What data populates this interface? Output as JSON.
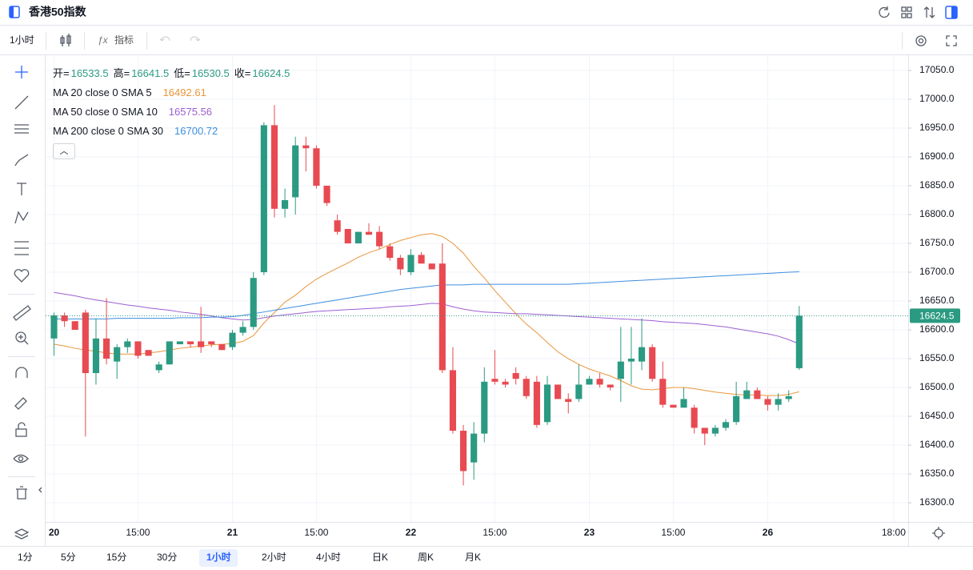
{
  "ui": {
    "title": "香港50指数",
    "interval": "1小时",
    "indicators": "指标",
    "ohlc_labels": [
      "开=",
      "高=",
      "低=",
      "收="
    ],
    "timeframes": [
      "1分",
      "5分",
      "15分",
      "30分",
      "1小时",
      "2小时",
      "4小时",
      "日K",
      "周K",
      "月K"
    ],
    "active_timeframe": 4
  },
  "chart_data": {
    "type": "candlestick",
    "up_color": "#2b9a82",
    "down_color": "#e84a51",
    "grid": true,
    "xlim": [
      -0.8,
      81
    ],
    "xticks": [
      {
        "value": 0,
        "label": "20"
      },
      {
        "value": 8,
        "label": "15:00"
      },
      {
        "value": 17,
        "label": "21"
      },
      {
        "value": 25,
        "label": "15:00"
      },
      {
        "value": 34,
        "label": "22"
      },
      {
        "value": 42,
        "label": "15:00"
      },
      {
        "value": 51,
        "label": "23"
      },
      {
        "value": 59,
        "label": "15:00"
      },
      {
        "value": 68,
        "label": "26"
      },
      {
        "value": 80,
        "label": "18:00"
      }
    ],
    "ylim": [
      16266.7,
      17075
    ],
    "yticks": [
      {
        "value": 16300,
        "label": "16300.0"
      },
      {
        "value": 16350,
        "label": "16350.0"
      },
      {
        "value": 16400,
        "label": "16400.0"
      },
      {
        "value": 16450,
        "label": "16450.0"
      },
      {
        "value": 16500,
        "label": "16500.0"
      },
      {
        "value": 16550,
        "label": "16550.0"
      },
      {
        "value": 16600,
        "label": "16600.0"
      },
      {
        "value": 16650,
        "label": "16650.0"
      },
      {
        "value": 16700,
        "label": "16700.0"
      },
      {
        "value": 16750,
        "label": "16750.0"
      },
      {
        "value": 16800,
        "label": "16800.0"
      },
      {
        "value": 16850,
        "label": "16850.0"
      },
      {
        "value": 16900,
        "label": "16900.0"
      },
      {
        "value": 16950,
        "label": "16950.0"
      },
      {
        "value": 17000,
        "label": "17000.0"
      },
      {
        "value": 17050,
        "label": "17050.0"
      }
    ],
    "open": [
      16585,
      16625,
      16615,
      16630,
      16525,
      16585,
      16545,
      16570,
      16580,
      16565,
      16530,
      16540,
      16575,
      16580,
      16580,
      16580,
      16575,
      16570,
      16595,
      16605,
      16700,
      16955,
      16810,
      16830,
      16920,
      16915,
      16850,
      16790,
      16775,
      16750,
      16770,
      16770,
      16745,
      16725,
      16700,
      16730,
      16715,
      16715,
      16530,
      16425,
      16370,
      16420,
      16515,
      16510,
      16525,
      16515,
      16510,
      16440,
      16505,
      16480,
      16480,
      16505,
      16515,
      16505,
      16515,
      16545,
      16545,
      16570,
      16515,
      16470,
      16465,
      16465,
      16430,
      16420,
      16430,
      16440,
      16480,
      16495,
      16480,
      16470,
      16480,
      16533.5
    ],
    "high": [
      16630,
      16630,
      16615,
      16635,
      16620,
      16655,
      16575,
      16585,
      16580,
      16565,
      16545,
      16580,
      16580,
      16580,
      16640,
      16580,
      16575,
      16600,
      16615,
      16700,
      16960,
      16990,
      16845,
      16935,
      16935,
      16920,
      16850,
      16800,
      16775,
      16770,
      16785,
      16780,
      16750,
      16730,
      16740,
      16735,
      16715,
      16750,
      16570,
      16435,
      16440,
      16535,
      16565,
      16515,
      16535,
      16520,
      16520,
      16520,
      16505,
      16490,
      16540,
      16520,
      16525,
      16505,
      16605,
      16605,
      16620,
      16575,
      16545,
      16470,
      16500,
      16470,
      16430,
      16435,
      16445,
      16510,
      16510,
      16500,
      16485,
      16490,
      16495,
      16641.5
    ],
    "low": [
      16555,
      16605,
      16600,
      16415,
      16505,
      16540,
      16515,
      16560,
      16550,
      16555,
      16525,
      16540,
      16575,
      16570,
      16560,
      16570,
      16565,
      16565,
      16590,
      16600,
      16695,
      16795,
      16795,
      16800,
      16875,
      16845,
      16815,
      16765,
      16750,
      16750,
      16765,
      16740,
      16720,
      16695,
      16695,
      16715,
      16705,
      16525,
      16420,
      16330,
      16340,
      16405,
      16505,
      16500,
      16505,
      16480,
      16430,
      16435,
      16480,
      16455,
      16475,
      16505,
      16500,
      16495,
      16475,
      16505,
      16530,
      16510,
      16465,
      16465,
      16465,
      16420,
      16400,
      16415,
      16425,
      16435,
      16480,
      16480,
      16460,
      16460,
      16475,
      16530.5
    ],
    "close": [
      16625,
      16615,
      16600,
      16525,
      16585,
      16550,
      16570,
      16580,
      16555,
      16555,
      16540,
      16580,
      16580,
      16575,
      16570,
      16575,
      16565,
      16595,
      16605,
      16690,
      16955,
      16810,
      16825,
      16920,
      16915,
      16850,
      16820,
      16770,
      16750,
      16770,
      16765,
      16745,
      16725,
      16705,
      16730,
      16715,
      16705,
      16530,
      16425,
      16355,
      16420,
      16510,
      16510,
      16505,
      16515,
      16485,
      16435,
      16505,
      16480,
      16475,
      16505,
      16515,
      16505,
      16500,
      16545,
      16550,
      16570,
      16515,
      16470,
      16465,
      16480,
      16430,
      16420,
      16430,
      16440,
      16485,
      16495,
      16480,
      16470,
      16480,
      16485,
      16624.5
    ],
    "series": [
      {
        "name": "MA 20 close 0 SMA 5",
        "color": "#e8963a",
        "values": [
          16575,
          16572,
          16568,
          16565,
          16563,
          16560,
          16558,
          16558,
          16558,
          16560,
          16562,
          16565,
          16568,
          16570,
          16572,
          16574,
          16575,
          16576,
          16580,
          16590,
          16612,
          16630,
          16648,
          16660,
          16675,
          16688,
          16698,
          16707,
          16716,
          16726,
          16734,
          16740,
          16748,
          16755,
          16760,
          16765,
          16767,
          16762,
          16750,
          16733,
          16710,
          16690,
          16668,
          16648,
          16628,
          16610,
          16595,
          16578,
          16562,
          16550,
          16540,
          16532,
          16526,
          16520,
          16512,
          16503,
          16497,
          16496,
          16498,
          16500,
          16500,
          16498,
          16495,
          16492,
          16490,
          16488,
          16487,
          16487,
          16486,
          16486,
          16488,
          16492.61
        ]
      },
      {
        "name": "MA 50 close 0 SMA 10",
        "color": "#9c5fd0",
        "values": [
          16665,
          16662,
          16659,
          16655,
          16652,
          16649,
          16646,
          16643,
          16641,
          16638,
          16636,
          16634,
          16631,
          16629,
          16627,
          16624,
          16621,
          16619,
          16617,
          16618,
          16621,
          16624,
          16626,
          16628,
          16630,
          16632,
          16633,
          16634,
          16635,
          16636,
          16637,
          16638,
          16640,
          16641,
          16642,
          16644,
          16646,
          16645,
          16640,
          16636,
          16633,
          16631,
          16630,
          16629,
          16628,
          16628,
          16627,
          16626,
          16625,
          16624,
          16623,
          16622,
          16621,
          16620,
          16619,
          16618,
          16617,
          16616,
          16614,
          16613,
          16612,
          16611,
          16609,
          16607,
          16605,
          16602,
          16599,
          16596,
          16593,
          16589,
          16583,
          16575.56
        ]
      },
      {
        "name": "MA 200 close 0 SMA 30",
        "color": "#3d8ee0",
        "values": [
          16619,
          16619,
          16619,
          16619,
          16619,
          16619,
          16620,
          16620,
          16620,
          16620,
          16620,
          16620,
          16621,
          16621,
          16621,
          16622,
          16622,
          16623,
          16625,
          16628,
          16631,
          16634,
          16637,
          16640,
          16643,
          16646,
          16649,
          16652,
          16655,
          16658,
          16661,
          16664,
          16667,
          16670,
          16672,
          16674,
          16676,
          16678,
          16678,
          16678,
          16679,
          16679,
          16679,
          16679,
          16679,
          16679,
          16679,
          16679,
          16679,
          16679,
          16680,
          16681,
          16682,
          16683,
          16684,
          16685,
          16686,
          16687,
          16688,
          16689,
          16690,
          16691,
          16692,
          16693,
          16694,
          16695,
          16696,
          16697,
          16698,
          16699,
          16700,
          16700.72
        ]
      }
    ]
  }
}
